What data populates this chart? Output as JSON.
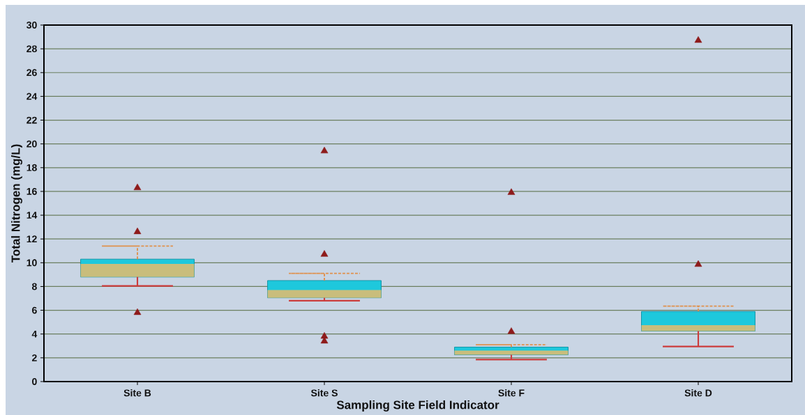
{
  "chart_data": {
    "type": "box",
    "xlabel": "Sampling Site Field Indicator",
    "ylabel": "Total Nitrogen (mg/L)",
    "categories": [
      "Site B",
      "Site S",
      "Site F",
      "Site D"
    ],
    "color": "#1ec8dc",
    "boxes": [
      {
        "low": 8.05,
        "q1": 8.8,
        "median": 9.9,
        "q3": 10.3,
        "high": 11.4,
        "outliers": [
          16.3,
          12.6,
          5.8
        ]
      },
      {
        "low": 6.8,
        "q1": 7.05,
        "median": 7.7,
        "q3": 8.5,
        "high": 9.1,
        "outliers": [
          19.4,
          10.7,
          3.8,
          3.4
        ]
      },
      {
        "low": 1.85,
        "q1": 2.25,
        "median": 2.6,
        "q3": 2.9,
        "high": 3.1,
        "outliers": [
          15.9,
          4.2
        ]
      },
      {
        "low": 2.95,
        "q1": 4.25,
        "median": 4.75,
        "q3": 5.9,
        "high": 6.35,
        "outliers": [
          28.7,
          9.85
        ]
      }
    ],
    "ylim": [
      0,
      30
    ],
    "yticks": [
      0,
      2,
      4,
      6,
      8,
      10,
      12,
      14,
      16,
      18,
      20,
      22,
      24,
      26,
      28,
      30
    ],
    "grid": "y",
    "marker": "triangle"
  }
}
